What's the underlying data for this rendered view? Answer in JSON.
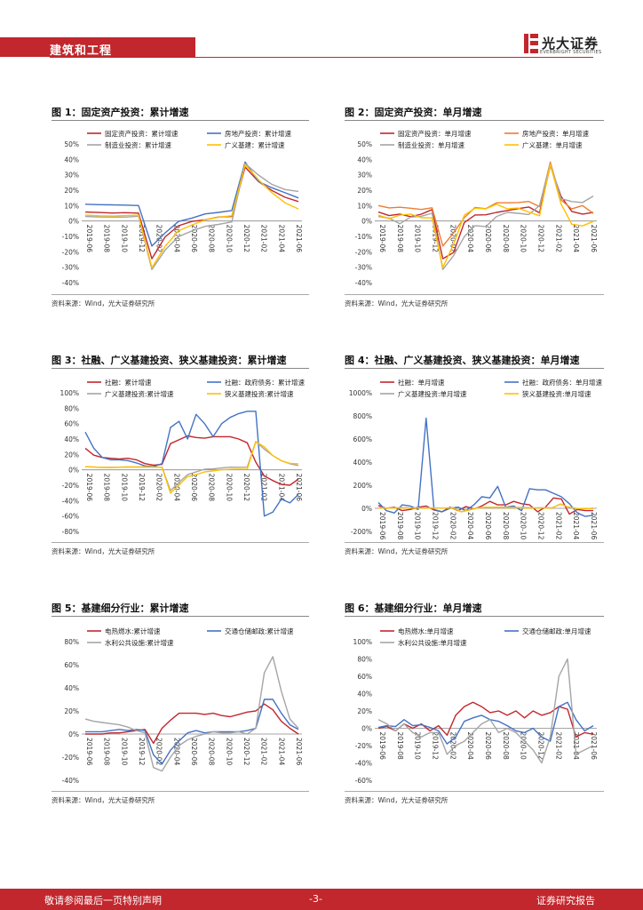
{
  "header": {
    "section": "建筑和工程",
    "logo_name": "光大证券",
    "logo_sub": "EVERBRIGHT SECURITIES"
  },
  "colors": {
    "red": "#c1272d",
    "orange": "#ed7d31",
    "gray": "#a5a5a5",
    "yellow": "#ffc000",
    "blue": "#4472c4"
  },
  "figures": [
    {
      "title": "图 1：固定资产投资：累计增速",
      "source": "资料来源：Wind，光大证券研究所"
    },
    {
      "title": "图 2：固定资产投资：单月增速",
      "source": "资料来源：Wind，光大证券研究所"
    },
    {
      "title": "图 3：社融、广义基建投资、狭义基建投资：累计增速",
      "source": "资料来源：Wind，光大证券研究所"
    },
    {
      "title": "图 4：社融、广义基建投资、狭义基建投资：单月增速",
      "source": "资料来源：Wind，光大证券研究所"
    },
    {
      "title": "图 5：基建细分行业：累计增速",
      "source": "资料来源：Wind，光大证券研究所"
    },
    {
      "title": "图 6：基建细分行业：单月增速",
      "source": "资料来源：Wind，光大证券研究所"
    }
  ],
  "chart_data": [
    {
      "type": "line",
      "title": "图 1：固定资产投资：累计增速",
      "ylim": [
        -40,
        50
      ],
      "ystep": 10,
      "yticks": [
        "50%",
        "40%",
        "30%",
        "20%",
        "10%",
        "0%",
        "-10%",
        "-20%",
        "-30%",
        "-40%"
      ],
      "xlabels": [
        "2019-06",
        "2019-08",
        "2019-10",
        "2019-12",
        "2020-02",
        "2020-04",
        "2020-06",
        "2020-08",
        "2020-10",
        "2020-12",
        "2021-02",
        "2021-04",
        "2021-06"
      ],
      "series": [
        {
          "name": "固定资产投资：累计增速",
          "color": "#c1272d",
          "values": [
            5.8,
            5.5,
            5.2,
            5.4,
            5.1,
            -24.5,
            -10.3,
            -3.1,
            -0.3,
            0.8,
            2.6,
            2.9,
            35.0,
            25.6,
            19.9,
            15.4,
            12.6
          ]
        },
        {
          "name": "房地产投资：累计增速",
          "color": "#4472c4",
          "values": [
            10.9,
            10.6,
            10.5,
            10.3,
            10.0,
            -16.3,
            -7.7,
            -0.3,
            1.9,
            4.6,
            5.6,
            6.8,
            38.3,
            25.6,
            21.6,
            18.3,
            15.0
          ]
        },
        {
          "name": "制造业投资：累计增速",
          "color": "#a5a5a5",
          "values": [
            3.0,
            2.6,
            2.5,
            2.5,
            3.1,
            -31.5,
            -18.8,
            -10.2,
            -6.5,
            -3.5,
            -2.2,
            -0.6,
            37.3,
            29.8,
            23.8,
            20.4,
            19.2
          ]
        },
        {
          "name": "广义基建：累计增速",
          "color": "#ffc000",
          "values": [
            3.8,
            3.4,
            3.2,
            3.5,
            3.8,
            -30.3,
            -16.4,
            -6.3,
            -2.7,
            0.8,
            2.4,
            3.4,
            36.6,
            26.8,
            18.4,
            11.8,
            7.8
          ]
        }
      ],
      "legend": [
        "固定资产投资：累计增速",
        "房地产投资：累计增速",
        "制造业投资：累计增速",
        "广义基建：累计增速"
      ]
    },
    {
      "type": "line",
      "title": "图 2：固定资产投资：单月增速",
      "ylim": [
        -40,
        50
      ],
      "ystep": 10,
      "yticks": [
        "50%",
        "40%",
        "30%",
        "20%",
        "10%",
        "0%",
        "-10%",
        "-20%",
        "-30%",
        "-40%"
      ],
      "xlabels": [
        "2019-06",
        "2019-08",
        "2019-10",
        "2019-12",
        "2020-02",
        "2020-04",
        "2020-06",
        "2020-08",
        "2020-10",
        "2020-12",
        "2021-02",
        "2021-04",
        "2021-06"
      ],
      "series": [
        {
          "name": "固定资产投资：单月增速",
          "color": "#c1272d",
          "values": [
            5.8,
            3.5,
            4.5,
            2.8,
            4.4,
            7.4,
            -24.5,
            -20.5,
            -1.0,
            3.9,
            4.0,
            5.6,
            6.8,
            8.0,
            9.1,
            5.3,
            36.0,
            16.0,
            6.2,
            4.5,
            5.5
          ]
        },
        {
          "name": "房地产投资：单月增速",
          "color": "#ed7d31",
          "values": [
            10.0,
            8.5,
            8.9,
            8.3,
            7.5,
            8.6,
            -16.3,
            -7.7,
            2.1,
            8.8,
            8.0,
            11.8,
            11.8,
            12.0,
            12.7,
            9.3,
            38.3,
            13.7,
            7.8,
            10.0,
            4.9
          ]
        },
        {
          "name": "制造业投资：单月增速",
          "color": "#a5a5a5",
          "values": [
            3.0,
            1.8,
            -1.8,
            2.5,
            3.1,
            5.0,
            -31.5,
            -22.5,
            -10.2,
            -3.0,
            -3.6,
            2.9,
            5.6,
            5.0,
            4.2,
            10.0,
            37.3,
            14.5,
            12.6,
            12.0,
            16.2
          ]
        },
        {
          "name": "广义基建：单月增速",
          "color": "#ffc000",
          "values": [
            3.8,
            1.5,
            3.8,
            4.5,
            2.1,
            2.0,
            -30.3,
            -15.0,
            3.8,
            8.3,
            7.9,
            10.9,
            7.9,
            8.4,
            5.8,
            3.4,
            36.6,
            11.1,
            -2.1,
            -3.2,
            -0.3
          ]
        }
      ],
      "legend": [
        "固定资产投资：单月增速",
        "房地产投资：单月增速",
        "制造业投资：单月增速",
        "广义基建：单月增速"
      ]
    },
    {
      "type": "line",
      "title": "图 3：社融、广义基建投资、狭义基建投资：累计增速",
      "ylim": [
        -80,
        100
      ],
      "ystep": 20,
      "yticks": [
        "100%",
        "80%",
        "60%",
        "40%",
        "20%",
        "0%",
        "-20%",
        "-40%",
        "-60%",
        "-80%"
      ],
      "xlabels": [
        "2019-06",
        "2019-08",
        "2019-10",
        "2019-12",
        "2020-02",
        "2020-04",
        "2020-06",
        "2020-08",
        "2020-10",
        "2020-12",
        "2021-02",
        "2021-04",
        "2021-06"
      ],
      "series": [
        {
          "name": "社融：累计增速",
          "color": "#c1272d",
          "values": [
            28,
            19,
            16,
            15,
            14,
            15,
            13,
            8,
            6,
            7,
            34,
            39,
            44,
            42,
            41,
            43,
            43,
            43,
            40,
            35,
            10,
            -8,
            -14,
            -19,
            -20,
            -12
          ]
        },
        {
          "name": "社融：政府债务：累计增速",
          "color": "#4472c4",
          "values": [
            49,
            28,
            16,
            13,
            13,
            12,
            9,
            5,
            4,
            8,
            55,
            63,
            40,
            72,
            60,
            43,
            60,
            68,
            73,
            76,
            76,
            -60,
            -55,
            -38,
            -43,
            -32
          ]
        },
        {
          "name": "广义基建投资:累计增速",
          "color": "#a5a5a5",
          "values": [
            4,
            3.5,
            3.2,
            3.1,
            3.4,
            3.8,
            3.6,
            3.8,
            3.3,
            3.4,
            -26.9,
            -16.4,
            -6.3,
            -2.7,
            0.8,
            1.2,
            2.4,
            3.4,
            3.3,
            3.4,
            36.6,
            26.8,
            18.4,
            11.8,
            7.8,
            5.6
          ]
        },
        {
          "name": "狭义基建投资:累计增速",
          "color": "#ffc000",
          "values": [
            4.1,
            3.5,
            3.2,
            3.0,
            3.3,
            3.6,
            3.5,
            3.8,
            3.4,
            3.3,
            -30.3,
            -19.7,
            -8.8,
            -6.3,
            -2.7,
            -1.4,
            0.2,
            0.7,
            0.9,
            0.9,
            36.6,
            29.7,
            18.4,
            11.8,
            8.4,
            7.8
          ]
        }
      ],
      "legend": [
        "社融：累计增速",
        "社融：政府债务：累计增速",
        "广义基建投资:累计增速",
        "狭义基建投资:累计增速"
      ]
    },
    {
      "type": "line",
      "title": "图 4：社融、广义基建投资、狭义基建投资：单月增速",
      "ylim": [
        -200,
        1000
      ],
      "ystep": 200,
      "yticks": [
        "1000%",
        "800%",
        "600%",
        "400%",
        "200%",
        "0%",
        "-200%"
      ],
      "xlabels": [
        "2019-06",
        "2019-08",
        "2019-10",
        "2019-12",
        "2020-02",
        "2020-04",
        "2020-06",
        "2020-08",
        "2020-10",
        "2020-12",
        "2021-02",
        "2021-04",
        "2021-06"
      ],
      "series": [
        {
          "name": "社融：单月增速",
          "color": "#c1272d",
          "values": [
            25,
            0,
            10,
            -20,
            -10,
            10,
            20,
            -15,
            -30,
            10,
            -20,
            15,
            -5,
            20,
            60,
            30,
            30,
            60,
            40,
            30,
            -30,
            10,
            90,
            80,
            -50,
            -10,
            -20,
            -20
          ]
        },
        {
          "name": "社融：政府债务：单月增速",
          "color": "#4472c4",
          "values": [
            50,
            -20,
            -40,
            30,
            20,
            -10,
            780,
            -10,
            -30,
            0,
            10,
            -20,
            30,
            100,
            90,
            190,
            10,
            20,
            -20,
            170,
            160,
            160,
            130,
            100,
            40,
            -40,
            -70,
            -60
          ]
        },
        {
          "name": "广义基建投资:单月增速",
          "color": "#a5a5a5",
          "values": [
            5,
            2,
            4,
            5,
            2,
            3,
            4,
            2,
            2,
            5,
            -30,
            -15,
            4,
            8,
            8,
            11,
            8,
            8,
            6,
            3,
            5,
            3,
            37,
            11,
            -2,
            -3,
            0
          ]
        },
        {
          "name": "狭义基建投资:单月增速",
          "color": "#ffc000",
          "values": [
            4,
            2,
            4,
            4,
            2,
            3,
            3,
            2,
            2,
            3,
            -30,
            -13,
            4,
            9,
            8,
            8,
            5,
            6,
            4,
            3,
            4,
            3,
            36,
            11,
            -1,
            -3,
            1
          ]
        }
      ],
      "legend": [
        "社融：单月增速",
        "社融：政府债务：单月增速",
        "广义基建投资:单月增速",
        "狭义基建投资:单月增速"
      ]
    },
    {
      "type": "line",
      "title": "图 5：基建细分行业：累计增速",
      "ylim": [
        -40,
        80
      ],
      "ystep": 20,
      "yticks": [
        "80%",
        "60%",
        "40%",
        "20%",
        "0%",
        "-20%",
        "-40%"
      ],
      "xlabels": [
        "2019-06",
        "2019-08",
        "2019-10",
        "2019-12",
        "2020-02",
        "2020-04",
        "2020-06",
        "2020-08",
        "2020-10",
        "2020-12",
        "2021-02",
        "2021-04",
        "2021-06"
      ],
      "series": [
        {
          "name": "电热燃水:累计增速",
          "color": "#c1272d",
          "values": [
            0,
            0,
            0,
            1,
            1,
            2,
            3,
            4,
            -8,
            5,
            12,
            18,
            18,
            18,
            17,
            18,
            16,
            15,
            17,
            19,
            20,
            26,
            21,
            11,
            5,
            0
          ]
        },
        {
          "name": "交通仓储邮政:累计增速",
          "color": "#4472c4",
          "values": [
            2,
            2,
            2,
            3,
            4,
            3,
            4,
            3,
            -18,
            -26,
            -14,
            -6,
            1,
            3,
            1,
            2,
            2,
            2,
            2,
            3,
            5,
            30,
            30,
            18,
            8,
            4
          ]
        },
        {
          "name": "水利公共设施:累计增速",
          "color": "#a5a5a5",
          "values": [
            13,
            11,
            10,
            9,
            8,
            6,
            3,
            1,
            -29,
            -32,
            -20,
            -10,
            -5,
            -2,
            0,
            2,
            1,
            1,
            2,
            0,
            5,
            53,
            67,
            37,
            13,
            5
          ]
        }
      ],
      "legend": [
        "电热燃水:累计增速",
        "交通仓储邮政:累计增速",
        "水利公共设施:累计增速"
      ]
    },
    {
      "type": "line",
      "title": "图 6：基建细分行业：单月增速",
      "ylim": [
        -60,
        100
      ],
      "ystep": 20,
      "yticks": [
        "100%",
        "80%",
        "60%",
        "40%",
        "20%",
        "0%",
        "-20%",
        "-40%",
        "-60%"
      ],
      "xlabels": [
        "2019-06",
        "2019-08",
        "2019-10",
        "2019-12",
        "2020-02",
        "2020-04",
        "2020-06",
        "2020-08",
        "2020-10",
        "2020-12",
        "2021-02",
        "2021-04",
        "2021-06"
      ],
      "series": [
        {
          "name": "电热燃水:单月增速",
          "color": "#c1272d",
          "values": [
            0,
            2,
            -3,
            5,
            0,
            5,
            -3,
            3,
            -8,
            15,
            25,
            30,
            25,
            18,
            20,
            15,
            20,
            12,
            20,
            15,
            18,
            25,
            22,
            -10,
            -5,
            -7
          ]
        },
        {
          "name": "交通仓储邮政:单月增速",
          "color": "#4472c4",
          "values": [
            1,
            3,
            2,
            10,
            3,
            4,
            1,
            -3,
            -18,
            -10,
            8,
            12,
            15,
            10,
            8,
            3,
            -3,
            -5,
            0,
            -10,
            -15,
            25,
            30,
            10,
            -3,
            3
          ]
        },
        {
          "name": "水利公共设施:单月增速",
          "color": "#a5a5a5",
          "values": [
            10,
            5,
            -3,
            5,
            -5,
            -10,
            -5,
            -5,
            -30,
            -20,
            -15,
            -5,
            5,
            10,
            -5,
            0,
            -5,
            -15,
            -25,
            -40,
            -10,
            60,
            80,
            -30,
            -25,
            -20
          ]
        }
      ],
      "legend": [
        "电热燃水:单月增速",
        "交通仓储邮政:单月增速",
        "水利公共设施:单月增速"
      ]
    }
  ],
  "footer": {
    "left": "敬请参阅最后一页特别声明",
    "page": "-3-",
    "right": "证券研究报告"
  }
}
